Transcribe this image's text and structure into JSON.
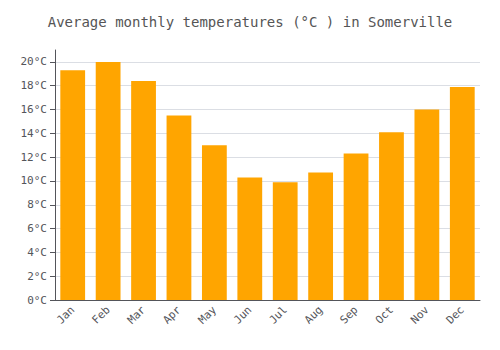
{
  "chart_data": {
    "type": "bar",
    "title": "Average monthly temperatures (°C ) in Somerville",
    "categories": [
      "Jan",
      "Feb",
      "Mar",
      "Apr",
      "May",
      "Jun",
      "Jul",
      "Aug",
      "Sep",
      "Oct",
      "Nov",
      "Dec"
    ],
    "values": [
      19.3,
      20.0,
      18.4,
      15.5,
      13.0,
      10.3,
      9.9,
      10.7,
      12.3,
      14.1,
      16.0,
      17.9
    ],
    "color": "#FFA500",
    "ylim": [
      0,
      21
    ],
    "yticks": [
      {
        "value": 0,
        "label": "0°C"
      },
      {
        "value": 2,
        "label": "2°C"
      },
      {
        "value": 4,
        "label": "4°C"
      },
      {
        "value": 6,
        "label": "6°C"
      },
      {
        "value": 8,
        "label": "8°C"
      },
      {
        "value": 10,
        "label": "10°C"
      },
      {
        "value": 12,
        "label": "12°C"
      },
      {
        "value": 14,
        "label": "14°C"
      },
      {
        "value": 16,
        "label": "16°C"
      },
      {
        "value": 18,
        "label": "18°C"
      },
      {
        "value": 20,
        "label": "20°C"
      }
    ],
    "grid": true
  }
}
